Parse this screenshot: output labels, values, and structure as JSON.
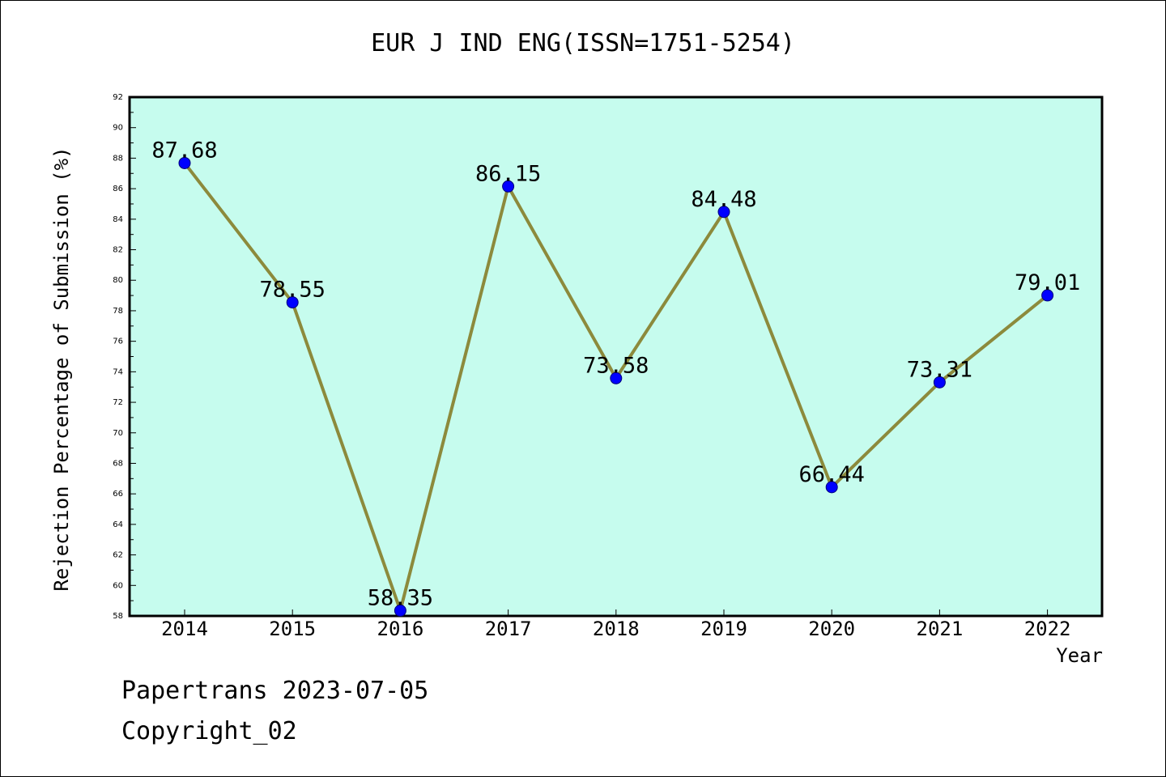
{
  "chart_data": {
    "type": "line",
    "title": "EUR J IND ENG(ISSN=1751-5254)",
    "xlabel": "Year",
    "ylabel": "Rejection Percentage of Submission (%)",
    "categories": [
      "2014",
      "2015",
      "2016",
      "2017",
      "2018",
      "2019",
      "2020",
      "2021",
      "2022"
    ],
    "values": [
      87.68,
      78.55,
      58.35,
      86.15,
      73.58,
      84.48,
      66.44,
      73.31,
      79.01
    ],
    "data_labels": [
      "87.68",
      "78.55",
      "58.35",
      "86.15",
      "73.58",
      "84.48",
      "66.44",
      "73.31",
      "79.01"
    ],
    "ylim": [
      58,
      92
    ],
    "yticks": [
      58,
      60,
      62,
      64,
      66,
      68,
      70,
      72,
      74,
      76,
      78,
      80,
      82,
      84,
      86,
      88,
      90,
      92
    ],
    "grid": false,
    "legend": "none",
    "colors": {
      "plot_background": "#c6fcee",
      "line": "#8c8a3c",
      "marker": "#0000ff",
      "axis": "#000000"
    }
  },
  "footer": {
    "date_line": "Papertrans 2023-07-05",
    "copyright_line": "Copyright_02"
  }
}
